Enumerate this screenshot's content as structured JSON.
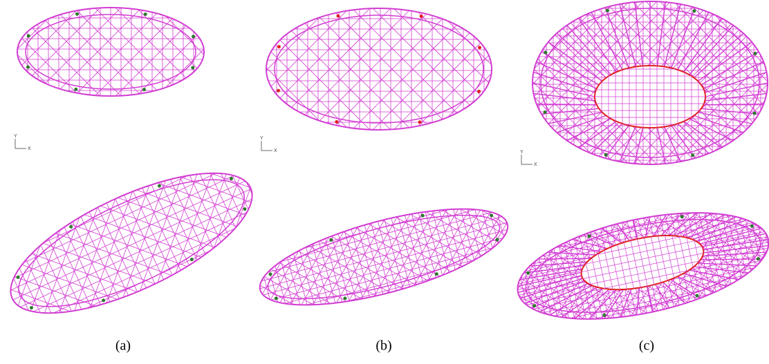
{
  "panels": [
    {
      "label": "(a)"
    },
    {
      "label": "(b)"
    },
    {
      "label": "(c)"
    }
  ],
  "axis_glyph": {
    "x": "X",
    "y": "Y"
  }
}
